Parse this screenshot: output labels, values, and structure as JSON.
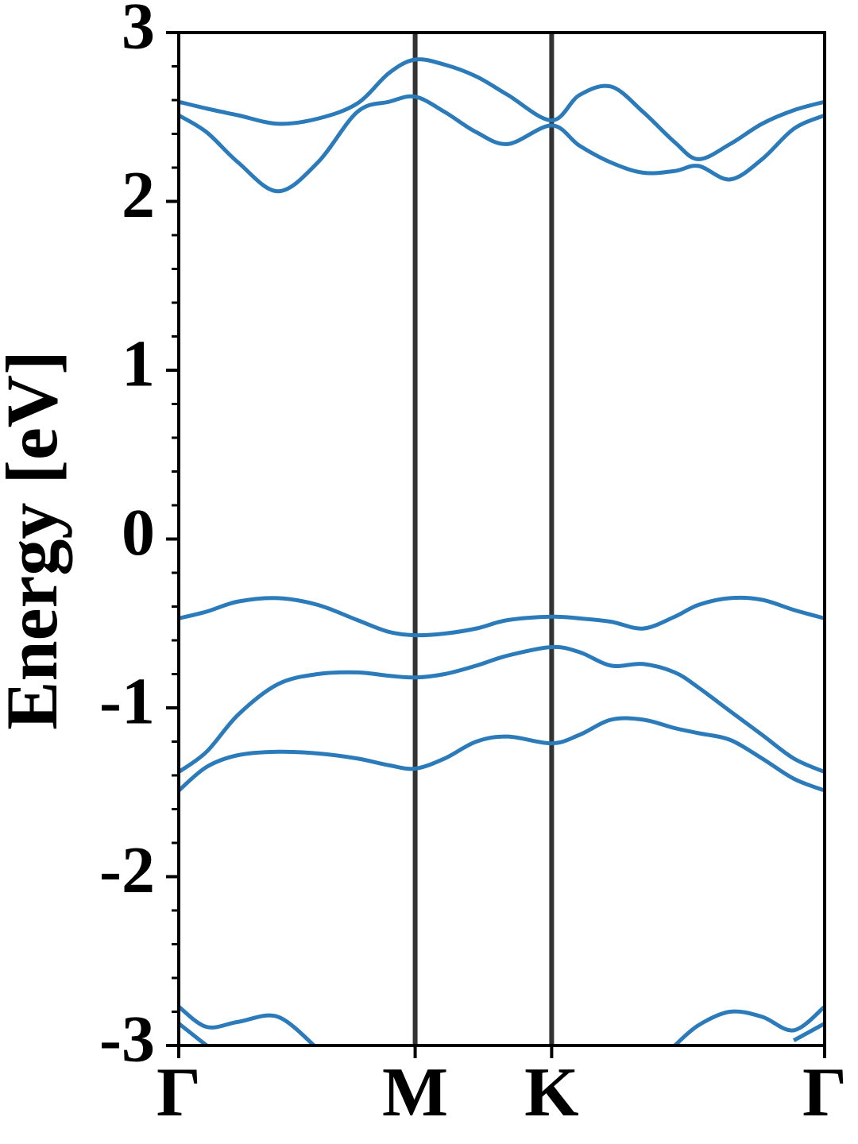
{
  "chart_data": {
    "type": "line",
    "y_label": "Energy [eV]",
    "color": "#2b7bba",
    "x": [
      0,
      0.102,
      0.218,
      0.363,
      0.509,
      0.654,
      0.77,
      0.866,
      0.974,
      1.09,
      1.206,
      1.366,
      1.468,
      1.584,
      1.701,
      1.817,
      1.904,
      2.02,
      2.137,
      2.253,
      2.366
    ],
    "series": [
      {
        "values": [
          2.59,
          2.55,
          2.51,
          2.46,
          2.49,
          2.58,
          2.76,
          2.84,
          2.81,
          2.74,
          2.63,
          2.48,
          2.63,
          2.68,
          2.53,
          2.35,
          2.25,
          2.34,
          2.46,
          2.54,
          2.59
        ]
      },
      {
        "values": [
          2.51,
          2.41,
          2.23,
          2.06,
          2.23,
          2.53,
          2.59,
          2.62,
          2.53,
          2.41,
          2.34,
          2.45,
          2.33,
          2.23,
          2.17,
          2.18,
          2.21,
          2.13,
          2.25,
          2.43,
          2.51
        ]
      },
      {
        "values": [
          -0.47,
          -0.43,
          -0.37,
          -0.35,
          -0.39,
          -0.48,
          -0.55,
          -0.57,
          -0.56,
          -0.53,
          -0.48,
          -0.46,
          -0.47,
          -0.49,
          -0.53,
          -0.46,
          -0.39,
          -0.35,
          -0.36,
          -0.42,
          -0.47
        ]
      },
      {
        "values": [
          -1.38,
          -1.26,
          -1.04,
          -0.86,
          -0.8,
          -0.79,
          -0.81,
          -0.82,
          -0.8,
          -0.75,
          -0.69,
          -0.64,
          -0.67,
          -0.75,
          -0.74,
          -0.79,
          -0.88,
          -1.02,
          -1.16,
          -1.3,
          -1.38
        ]
      },
      {
        "values": [
          -1.49,
          -1.35,
          -1.28,
          -1.26,
          -1.27,
          -1.3,
          -1.34,
          -1.36,
          -1.3,
          -1.2,
          -1.17,
          -1.21,
          -1.16,
          -1.07,
          -1.07,
          -1.12,
          -1.15,
          -1.19,
          -1.3,
          -1.42,
          -1.49
        ]
      },
      {
        "values": [
          -2.77,
          -2.89,
          -2.86,
          -2.83,
          -3.02,
          null,
          null,
          null,
          null,
          null,
          null,
          null,
          null,
          null,
          null,
          -3.0,
          -2.88,
          -2.8,
          -2.83,
          -2.91,
          -2.77
        ]
      },
      {
        "values": [
          -2.87,
          -3.0,
          null,
          null,
          null,
          null,
          null,
          null,
          null,
          null,
          null,
          null,
          null,
          null,
          null,
          null,
          null,
          null,
          null,
          -2.97,
          -2.87
        ]
      }
    ],
    "xlim": [
      0,
      2.366
    ],
    "xticks": [
      {
        "value": 0,
        "label": "Γ"
      },
      {
        "value": 0.866,
        "label": "M"
      },
      {
        "value": 1.366,
        "label": "K"
      },
      {
        "value": 2.366,
        "label": "Γ"
      }
    ],
    "symmetry_lines": true,
    "ylim": [
      -3,
      3
    ],
    "yticks": [
      -3,
      -2,
      -1,
      0,
      1,
      2,
      3
    ],
    "yminorticks": [
      -2.8,
      -2.6,
      -2.4,
      -2.2,
      -1.8,
      -1.6,
      -1.4,
      -1.2,
      -0.8,
      -0.6,
      -0.4,
      -0.2,
      0.2,
      0.4,
      0.6,
      0.8,
      1.2,
      1.4,
      1.6,
      1.8,
      2.2,
      2.4,
      2.6,
      2.8
    ]
  }
}
